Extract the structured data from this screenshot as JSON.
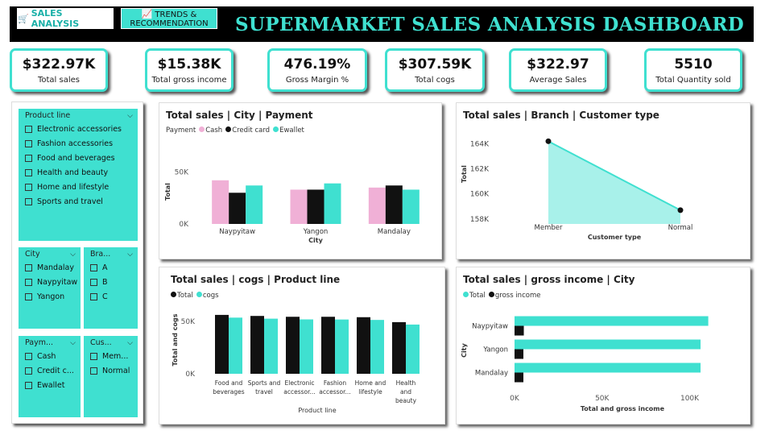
{
  "nav": {
    "sales_label": "SALES ANALYSIS",
    "trends_line1": "TRENDS &",
    "trends_line2": "RECOMMENDATION",
    "sales_icon": "cart-icon",
    "trends_icon": "chart-icon"
  },
  "title": "SUPERMARKET SALES ANALYSIS DASHBOARD",
  "colors": {
    "accent": "#3fe0d0",
    "pink": "#f0b0d6",
    "black": "#111111"
  },
  "kpis": [
    {
      "value": "$322.97K",
      "label": "Total sales"
    },
    {
      "value": "$15.38K",
      "label": "Total gross income"
    },
    {
      "value": "476.19%",
      "label": "Gross Margin %"
    },
    {
      "value": "$307.59K",
      "label": "Total cogs"
    },
    {
      "value": "$322.97",
      "label": "Average Sales"
    },
    {
      "value": "5510",
      "label": "Total Quantity sold"
    }
  ],
  "slicers": {
    "product_line": {
      "title": "Product line",
      "items": [
        "Electronic accessories",
        "Fashion accessories",
        "Food and beverages",
        "Health and beauty",
        "Home and lifestyle",
        "Sports and travel"
      ]
    },
    "city": {
      "title": "City",
      "items": [
        "Mandalay",
        "Naypyitaw",
        "Yangon"
      ]
    },
    "branch": {
      "title": "Bra...",
      "items": [
        "A",
        "B",
        "C"
      ]
    },
    "payment": {
      "title": "Paym...",
      "items": [
        "Cash",
        "Credit c...",
        "Ewallet"
      ]
    },
    "customer": {
      "title": "Cus...",
      "items": [
        "Mem...",
        "Normal"
      ]
    }
  },
  "chart_data": [
    {
      "id": "city_payment",
      "type": "bar",
      "title": "Total sales | City | Payment",
      "legend_title": "Payment",
      "categories": [
        "Naypyitaw",
        "Yangon",
        "Mandalay"
      ],
      "series": [
        {
          "name": "Cash",
          "color": "#f0b0d6",
          "values": [
            42,
            33,
            35
          ]
        },
        {
          "name": "Credit card",
          "color": "#111111",
          "values": [
            30,
            33,
            37
          ]
        },
        {
          "name": "Ewallet",
          "color": "#3fe0d0",
          "values": [
            37,
            39,
            33
          ]
        }
      ],
      "xlabel": "City",
      "ylabel": "Total",
      "ylim": [
        0,
        62
      ],
      "yticks": [
        {
          "v": 0,
          "label": "0K"
        },
        {
          "v": 50,
          "label": "50K"
        }
      ],
      "legend_position": "top-left"
    },
    {
      "id": "branch_customer",
      "type": "area",
      "title": "Total sales | Branch | Customer type",
      "categories": [
        "Member",
        "Normal"
      ],
      "values": [
        164.2,
        158.7
      ],
      "xlabel": "Customer type",
      "ylabel": "Total",
      "ylim": [
        157.6,
        164.8
      ],
      "yticks": [
        {
          "v": 158,
          "label": "158K"
        },
        {
          "v": 160,
          "label": "160K"
        },
        {
          "v": 162,
          "label": "162K"
        },
        {
          "v": 164,
          "label": "164K"
        }
      ],
      "color": "#3fe0d0"
    },
    {
      "id": "sales_cogs_product",
      "type": "bar",
      "title": "Total sales | cogs | Product line",
      "categories": [
        "Food and beverages",
        "Sports and travel",
        "Electronic accessor...",
        "Fashion accessor...",
        "Home and lifestyle",
        "Health and beauty"
      ],
      "category_lines": [
        [
          "Food and",
          "beverages"
        ],
        [
          "Sports and",
          "travel"
        ],
        [
          "Electronic",
          "accessor..."
        ],
        [
          "Fashion",
          "accessor..."
        ],
        [
          "Home and",
          "lifestyle"
        ],
        [
          "Health",
          "and",
          "beauty"
        ]
      ],
      "series": [
        {
          "name": "Total",
          "color": "#111111",
          "values": [
            56.1,
            55.1,
            54.3,
            54.3,
            53.9,
            49.2
          ]
        },
        {
          "name": "cogs",
          "color": "#3fe0d0",
          "values": [
            53.5,
            52.5,
            51.8,
            51.7,
            51.3,
            46.9
          ]
        }
      ],
      "xlabel": "Product line",
      "ylabel": "Total and cogs",
      "ylim": [
        0,
        66
      ],
      "yticks": [
        {
          "v": 0,
          "label": "0K"
        },
        {
          "v": 50,
          "label": "50K"
        }
      ],
      "legend_position": "top-left"
    },
    {
      "id": "sales_income_city",
      "type": "bar",
      "orientation": "horizontal",
      "title": "Total sales | gross income | City",
      "categories": [
        "Naypyitaw",
        "Yangon",
        "Mandalay"
      ],
      "series": [
        {
          "name": "Total",
          "color": "#3fe0d0",
          "values": [
            110.6,
            106.2,
            106.2
          ]
        },
        {
          "name": "gross income",
          "color": "#111111",
          "values": [
            5.3,
            5.06,
            5.06
          ]
        }
      ],
      "xlabel": "Total and gross income",
      "ylabel": "City",
      "xlim": [
        0,
        114
      ],
      "xticks": [
        {
          "v": 0,
          "label": "0K"
        },
        {
          "v": 50,
          "label": "50K"
        },
        {
          "v": 100,
          "label": "100K"
        }
      ],
      "legend_position": "top-left"
    }
  ]
}
